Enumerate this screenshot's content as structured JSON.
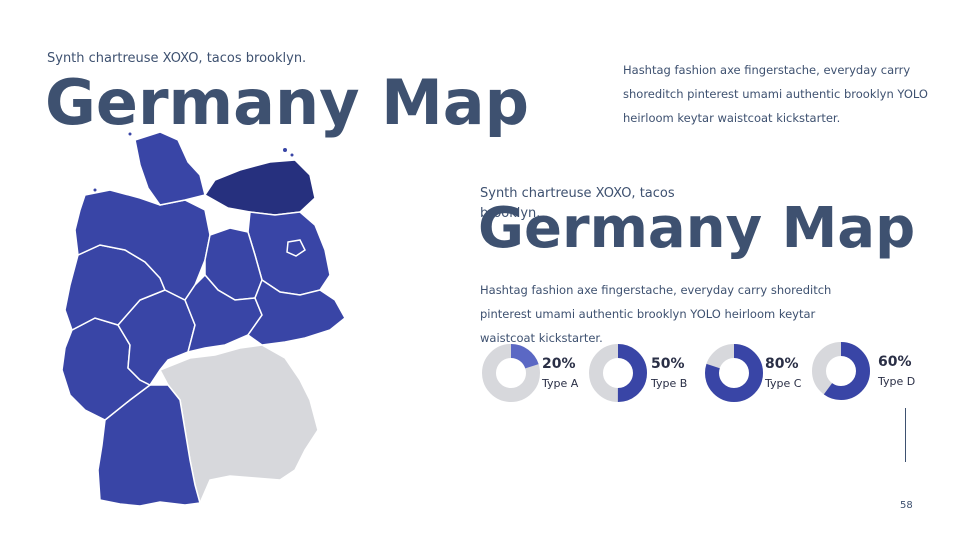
{
  "header": {
    "subtitle": "Synth chartreuse XOXO, tacos brooklyn.",
    "title": "Germany Map",
    "description": "Hashtag fashion axe fingerstache, everyday carry shoreditch pinterest umami authentic brooklyn YOLO heirloom keytar waistcoat kickstarter."
  },
  "overlay": {
    "subtitle_line1": "Synth chartreuse XOXO, tacos",
    "subtitle_line2": "brooklyn.",
    "title": "Germany Map",
    "description": "Hashtag fashion axe fingerstache, everyday carry shoreditch pinterest umami authentic brooklyn YOLO heirloom keytar waistcoat kickstarter."
  },
  "colors": {
    "primary": "#3945a6",
    "dark": "#26307e",
    "light": "#5b68c4",
    "grey": "#d7d8dc",
    "text": "#3e5170"
  },
  "stats": [
    {
      "label": "20%",
      "type": "Type A",
      "value": 0.2
    },
    {
      "label": "50%",
      "type": "Type B",
      "value": 0.5
    },
    {
      "label": "80%",
      "type": "Type C",
      "value": 0.8
    },
    {
      "label": "60%",
      "type": "Type D",
      "value": 0.6
    }
  ],
  "page_number": "58"
}
